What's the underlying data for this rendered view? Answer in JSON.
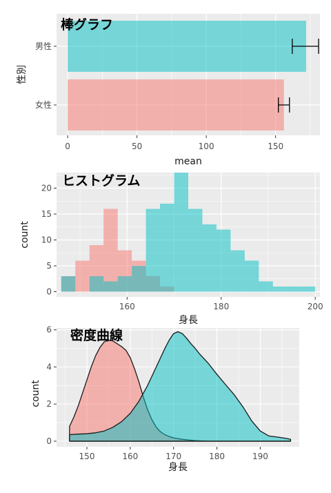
{
  "colors": {
    "female": "#f8766d",
    "male": "#00bfc4"
  },
  "chart_data": [
    {
      "type": "bar",
      "title": "棒グラフ",
      "orientation": "horizontal",
      "categories": [
        "女性",
        "男性"
      ],
      "values": [
        156,
        172
      ],
      "error_bars": [
        [
          152,
          160
        ],
        [
          162,
          181
        ]
      ],
      "xlabel": "mean",
      "ylabel": "性別",
      "xlim": [
        -8,
        182
      ],
      "xticks": [
        "0",
        "50",
        "100",
        "150"
      ]
    },
    {
      "type": "bar",
      "subtype": "histogram",
      "title": "ヒストグラム",
      "xlabel": "身長",
      "ylabel": "count",
      "xlim": [
        145,
        201
      ],
      "ylim": [
        -1,
        23
      ],
      "xticks": [
        "160",
        "180",
        "200"
      ],
      "yticks": [
        "0",
        "5",
        "10",
        "15",
        "20"
      ],
      "series": [
        {
          "name": "女性",
          "color": "#f8766d",
          "bins": [
            [
              146,
              149,
              3
            ],
            [
              149,
              152,
              6
            ],
            [
              152,
              155,
              9
            ],
            [
              155,
              158,
              16
            ],
            [
              158,
              161,
              8
            ],
            [
              161,
              164,
              6
            ],
            [
              164,
              167,
              3
            ],
            [
              167,
              170,
              1
            ]
          ]
        },
        {
          "name": "男性",
          "color": "#00bfc4",
          "bins": [
            [
              146,
              149,
              3
            ],
            [
              152,
              155,
              3
            ],
            [
              155,
              158,
              2
            ],
            [
              158,
              161,
              3
            ],
            [
              161,
              164,
              5
            ],
            [
              164,
              167,
              16
            ],
            [
              167,
              170,
              17
            ],
            [
              170,
              173,
              23
            ],
            [
              173,
              176,
              16
            ],
            [
              176,
              179,
              13
            ],
            [
              179,
              182,
              12
            ],
            [
              182,
              185,
              8
            ],
            [
              185,
              188,
              6
            ],
            [
              188,
              191,
              2
            ],
            [
              191,
              194,
              1
            ],
            [
              194,
              197,
              1
            ],
            [
              197,
              200,
              1
            ]
          ]
        }
      ]
    },
    {
      "type": "area",
      "subtype": "density",
      "title": "密度曲線",
      "xlabel": "身長",
      "ylabel": "count",
      "xlim": [
        143,
        199
      ],
      "ylim": [
        -0.3,
        6.1
      ],
      "xticks": [
        "150",
        "160",
        "170",
        "180",
        "190"
      ],
      "yticks": [
        "0",
        "2",
        "4",
        "6"
      ],
      "series": [
        {
          "name": "女性",
          "color": "#f8766d",
          "points": [
            [
              146,
              0.8
            ],
            [
              147,
              1.3
            ],
            [
              148,
              1.9
            ],
            [
              149,
              2.6
            ],
            [
              150,
              3.3
            ],
            [
              151,
              4.0
            ],
            [
              152,
              4.6
            ],
            [
              153,
              5.05
            ],
            [
              154,
              5.35
            ],
            [
              155,
              5.45
            ],
            [
              156,
              5.4
            ],
            [
              157,
              5.25
            ],
            [
              158,
              5.1
            ],
            [
              159,
              4.9
            ],
            [
              160,
              4.5
            ],
            [
              161,
              3.9
            ],
            [
              162,
              3.2
            ],
            [
              163,
              2.4
            ],
            [
              164,
              1.7
            ],
            [
              165,
              1.15
            ],
            [
              166,
              0.75
            ],
            [
              167,
              0.5
            ],
            [
              168,
              0.35
            ],
            [
              169,
              0.25
            ],
            [
              170,
              0.18
            ],
            [
              172,
              0.1
            ],
            [
              175,
              0.03
            ],
            [
              178,
              0.0
            ],
            [
              197,
              0.0
            ]
          ]
        },
        {
          "name": "男性",
          "color": "#00bfc4",
          "points": [
            [
              146,
              0.35
            ],
            [
              148,
              0.38
            ],
            [
              150,
              0.4
            ],
            [
              152,
              0.45
            ],
            [
              154,
              0.55
            ],
            [
              156,
              0.75
            ],
            [
              158,
              1.05
            ],
            [
              160,
              1.5
            ],
            [
              162,
              2.15
            ],
            [
              164,
              3.0
            ],
            [
              166,
              4.0
            ],
            [
              168,
              5.0
            ],
            [
              169,
              5.45
            ],
            [
              170,
              5.8
            ],
            [
              171,
              5.9
            ],
            [
              172,
              5.8
            ],
            [
              173,
              5.55
            ],
            [
              174,
              5.25
            ],
            [
              175,
              5.0
            ],
            [
              176,
              4.7
            ],
            [
              178,
              4.2
            ],
            [
              180,
              3.6
            ],
            [
              182,
              3.05
            ],
            [
              184,
              2.5
            ],
            [
              186,
              1.85
            ],
            [
              188,
              1.1
            ],
            [
              190,
              0.55
            ],
            [
              192,
              0.28
            ],
            [
              194,
              0.22
            ],
            [
              196,
              0.15
            ],
            [
              197,
              0.1
            ]
          ]
        }
      ]
    }
  ]
}
